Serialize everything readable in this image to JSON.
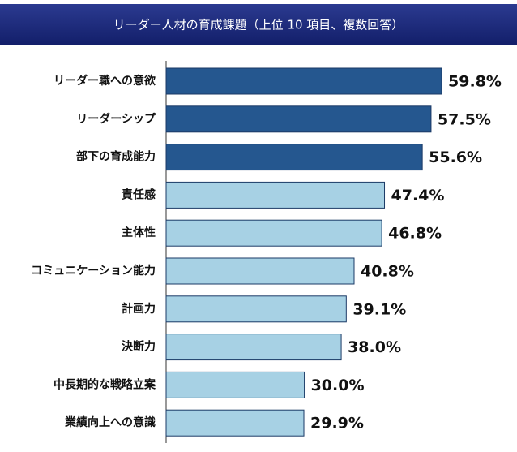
{
  "chart_data": {
    "type": "bar",
    "orientation": "horizontal",
    "title": "リーダー人材の育成課題（上位 10 項目、複数回答）",
    "categories": [
      "リーダー職への意欲",
      "リーダーシップ",
      "部下の育成能力",
      "責任感",
      "主体性",
      "コミュニケーション能力",
      "計画力",
      "決断力",
      "中長期的な戦略立案",
      "業績向上への意識"
    ],
    "values": [
      59.8,
      57.5,
      55.6,
      47.4,
      46.8,
      40.8,
      39.1,
      38.0,
      30.0,
      29.9
    ],
    "value_labels": [
      "59.8%",
      "57.5%",
      "55.6%",
      "47.4%",
      "46.8%",
      "40.8%",
      "39.1%",
      "38.0%",
      "30.0%",
      "29.9%"
    ],
    "colors": [
      "#25578f",
      "#25578f",
      "#25578f",
      "#a7d1e4",
      "#a7d1e4",
      "#a7d1e4",
      "#a7d1e4",
      "#a7d1e4",
      "#a7d1e4",
      "#a7d1e4"
    ]
  }
}
